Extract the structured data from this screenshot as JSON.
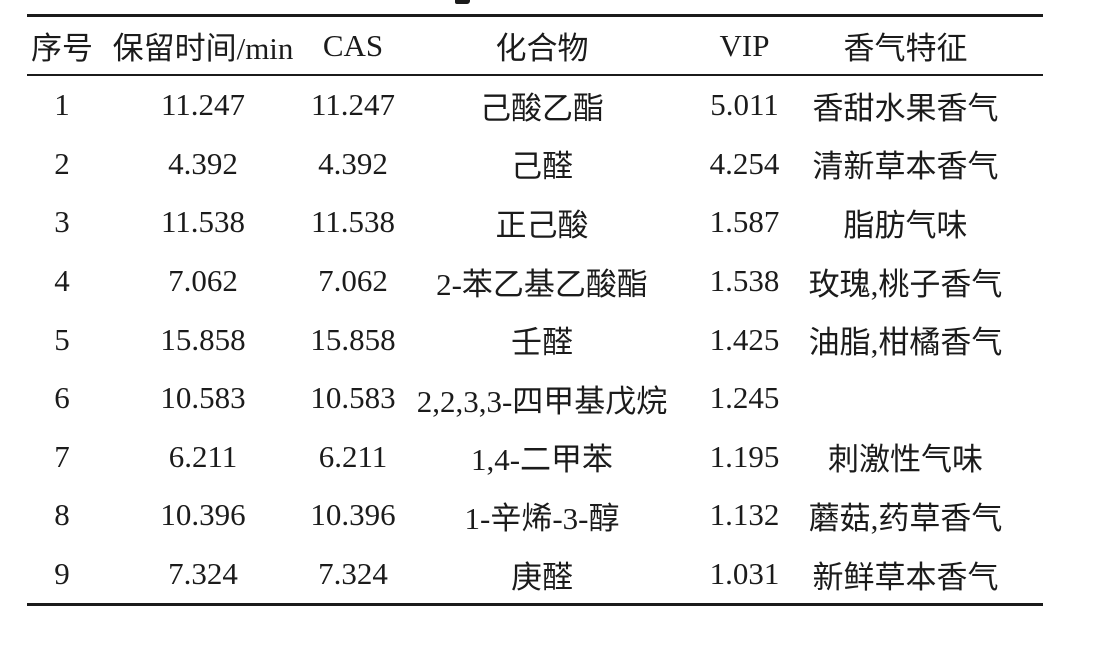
{
  "page": {
    "background": "#ffffff",
    "text_color": "#1b1b1b",
    "rule_color": "#1b1b1b"
  },
  "table": {
    "headers": [
      "序号",
      "保留时间/min",
      "CAS",
      "化合物",
      "VIP",
      "香气特征"
    ],
    "rows": [
      {
        "no": "1",
        "retention_time": "11.247",
        "cas": "11.247",
        "compound": "己酸乙酯",
        "vip": "5.011",
        "aroma": "香甜水果香气"
      },
      {
        "no": "2",
        "retention_time": "4.392",
        "cas": "4.392",
        "compound": "己醛",
        "vip": "4.254",
        "aroma": "清新草本香气"
      },
      {
        "no": "3",
        "retention_time": "11.538",
        "cas": "11.538",
        "compound": "正己酸",
        "vip": "1.587",
        "aroma": "脂肪气味"
      },
      {
        "no": "4",
        "retention_time": "7.062",
        "cas": "7.062",
        "compound": "2-苯乙基乙酸酯",
        "vip": "1.538",
        "aroma": "玫瑰,桃子香气"
      },
      {
        "no": "5",
        "retention_time": "15.858",
        "cas": "15.858",
        "compound": "壬醛",
        "vip": "1.425",
        "aroma": "油脂,柑橘香气"
      },
      {
        "no": "6",
        "retention_time": "10.583",
        "cas": "10.583",
        "compound": "2,2,3,3-四甲基戊烷",
        "vip": "1.245",
        "aroma": ""
      },
      {
        "no": "7",
        "retention_time": "6.211",
        "cas": "6.211",
        "compound": "1,4-二甲苯",
        "vip": "1.195",
        "aroma": "刺激性气味"
      },
      {
        "no": "8",
        "retention_time": "10.396",
        "cas": "10.396",
        "compound": "1-辛烯-3-醇",
        "vip": "1.132",
        "aroma": "蘑菇,药草香气"
      },
      {
        "no": "9",
        "retention_time": "7.324",
        "cas": "7.324",
        "compound": "庚醛",
        "vip": "1.031",
        "aroma": "新鲜草本香气"
      }
    ]
  }
}
